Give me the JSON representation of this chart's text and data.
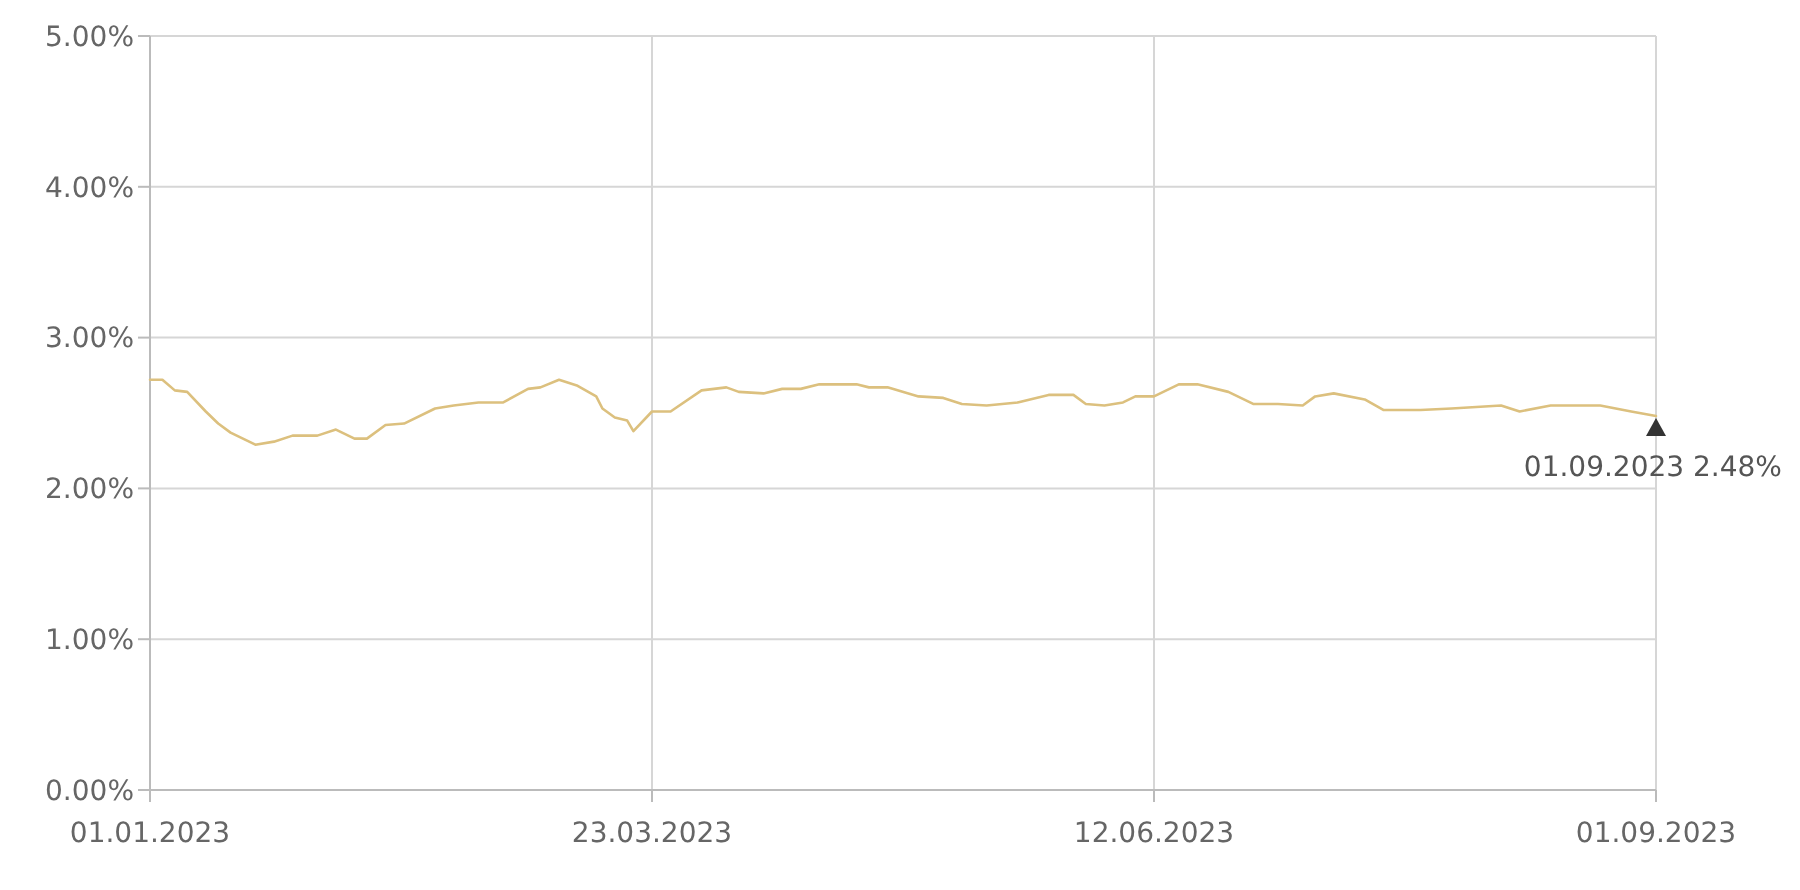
{
  "chart_data": {
    "type": "line",
    "x": [
      "2023-01-01",
      "2023-01-03",
      "2023-01-05",
      "2023-01-07",
      "2023-01-10",
      "2023-01-12",
      "2023-01-14",
      "2023-01-18",
      "2023-01-21",
      "2023-01-24",
      "2023-01-28",
      "2023-01-31",
      "2023-02-03",
      "2023-02-05",
      "2023-02-08",
      "2023-02-11",
      "2023-02-16",
      "2023-02-19",
      "2023-02-23",
      "2023-02-27",
      "2023-03-03",
      "2023-03-05",
      "2023-03-08",
      "2023-03-11",
      "2023-03-14",
      "2023-03-15",
      "2023-03-17",
      "2023-03-19",
      "2023-03-20",
      "2023-03-23",
      "2023-03-26",
      "2023-03-31",
      "2023-04-04",
      "2023-04-06",
      "2023-04-10",
      "2023-04-13",
      "2023-04-16",
      "2023-04-19",
      "2023-04-25",
      "2023-04-27",
      "2023-04-30",
      "2023-05-05",
      "2023-05-09",
      "2023-05-12",
      "2023-05-16",
      "2023-05-21",
      "2023-05-26",
      "2023-05-30",
      "2023-06-01",
      "2023-06-04",
      "2023-06-07",
      "2023-06-09",
      "2023-06-12",
      "2023-06-16",
      "2023-06-19",
      "2023-06-24",
      "2023-06-28",
      "2023-07-02",
      "2023-07-06",
      "2023-07-08",
      "2023-07-11",
      "2023-07-16",
      "2023-07-19",
      "2023-07-25",
      "2023-07-30",
      "2023-08-07",
      "2023-08-10",
      "2023-08-15",
      "2023-08-23",
      "2023-08-28",
      "2023-09-01"
    ],
    "series": [
      {
        "color": "#dcc07e",
        "values": [
          2.72,
          2.72,
          2.65,
          2.64,
          2.51,
          2.43,
          2.37,
          2.29,
          2.31,
          2.35,
          2.35,
          2.39,
          2.33,
          2.33,
          2.42,
          2.43,
          2.53,
          2.55,
          2.57,
          2.57,
          2.66,
          2.67,
          2.72,
          2.68,
          2.61,
          2.53,
          2.47,
          2.45,
          2.38,
          2.51,
          2.51,
          2.65,
          2.67,
          2.64,
          2.63,
          2.66,
          2.66,
          2.69,
          2.69,
          2.67,
          2.67,
          2.61,
          2.6,
          2.56,
          2.55,
          2.57,
          2.62,
          2.62,
          2.56,
          2.55,
          2.57,
          2.61,
          2.61,
          2.69,
          2.69,
          2.64,
          2.56,
          2.56,
          2.55,
          2.61,
          2.63,
          2.59,
          2.52,
          2.52,
          2.53,
          2.55,
          2.51,
          2.55,
          2.55,
          2.51,
          2.48
        ]
      }
    ],
    "xlim": [
      "2023-01-01",
      "2023-09-01"
    ],
    "xticks": [
      {
        "value": "2023-01-01",
        "label": "01.01.2023"
      },
      {
        "value": "2023-03-23",
        "label": "23.03.2023"
      },
      {
        "value": "2023-06-12",
        "label": "12.06.2023"
      },
      {
        "value": "2023-09-01",
        "label": "01.09.2023"
      }
    ],
    "ylim": [
      0,
      5
    ],
    "yticks": [
      {
        "value": 0,
        "label": "0.00%"
      },
      {
        "value": 1,
        "label": "1.00%"
      },
      {
        "value": 2,
        "label": "2.00%"
      },
      {
        "value": 3,
        "label": "3.00%"
      },
      {
        "value": 4,
        "label": "4.00%"
      },
      {
        "value": 5,
        "label": "5.00%"
      }
    ],
    "grid": true,
    "marker": "none",
    "line_style": "solid",
    "annotations": [
      {
        "text": "01.09.2023 2.48%",
        "x": "2023-09-01",
        "y": 2.48
      }
    ]
  }
}
